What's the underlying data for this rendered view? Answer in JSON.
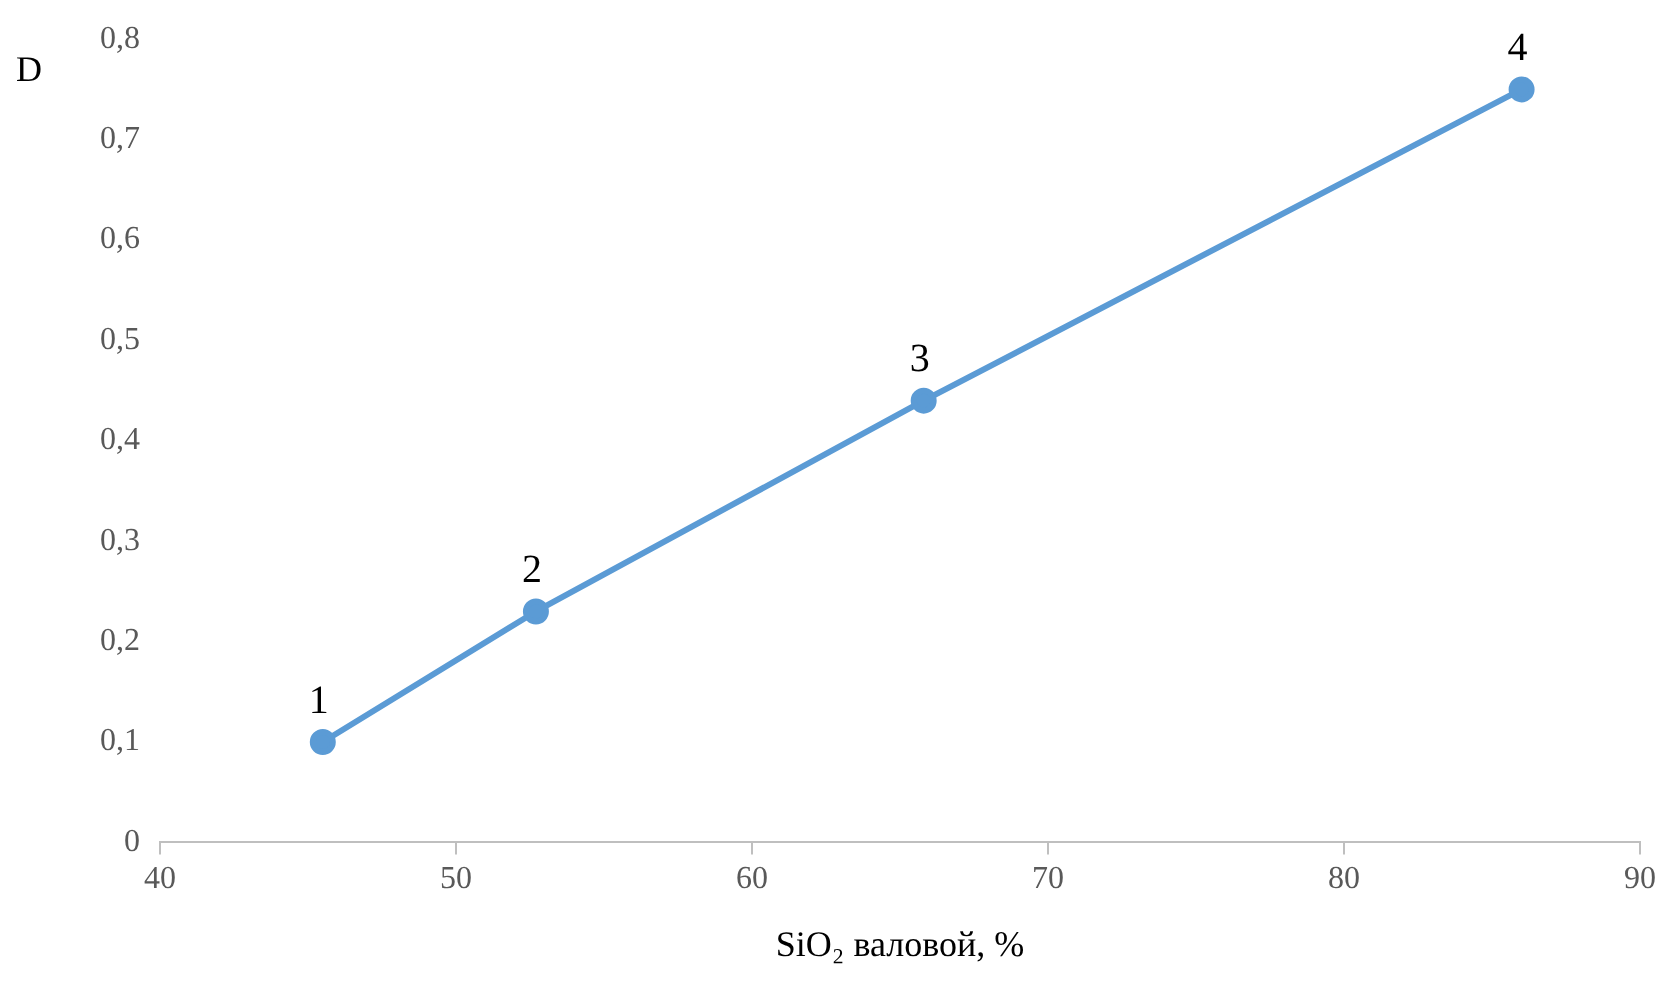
{
  "chart_data": {
    "type": "line",
    "xlabel": "SiO₂ валовой, %",
    "ylabel": "D",
    "x": [
      45.5,
      52.7,
      65.8,
      86.0
    ],
    "series": [
      {
        "color": "#5b9bd5",
        "values": [
          0.1,
          0.23,
          0.44,
          0.75
        ]
      }
    ],
    "xlim": [
      40,
      90
    ],
    "xticks": [
      40,
      50,
      60,
      70,
      80,
      90
    ],
    "ylim": [
      0,
      0.8
    ],
    "yticks": [
      0,
      {
        "value": 0.1,
        "label": "0,1"
      },
      {
        "value": 0.2,
        "label": "0,2"
      },
      {
        "value": 0.3,
        "label": "0,3"
      },
      {
        "value": 0.4,
        "label": "0,4"
      },
      {
        "value": 0.5,
        "label": "0,5"
      },
      {
        "value": 0.6,
        "label": "0,6"
      },
      {
        "value": 0.7,
        "label": "0,7"
      },
      {
        "value": 0.8,
        "label": "0,8"
      }
    ],
    "grid": false,
    "legend": false,
    "marker": "circle",
    "line_style": "solid",
    "annotations": [
      {
        "text": "1",
        "x": 45.5,
        "y": 0.1
      },
      {
        "text": "2",
        "x": 52.7,
        "y": 0.23
      },
      {
        "text": "3",
        "x": 65.8,
        "y": 0.44
      },
      {
        "text": "4",
        "x": 86.0,
        "y": 0.75
      }
    ]
  }
}
